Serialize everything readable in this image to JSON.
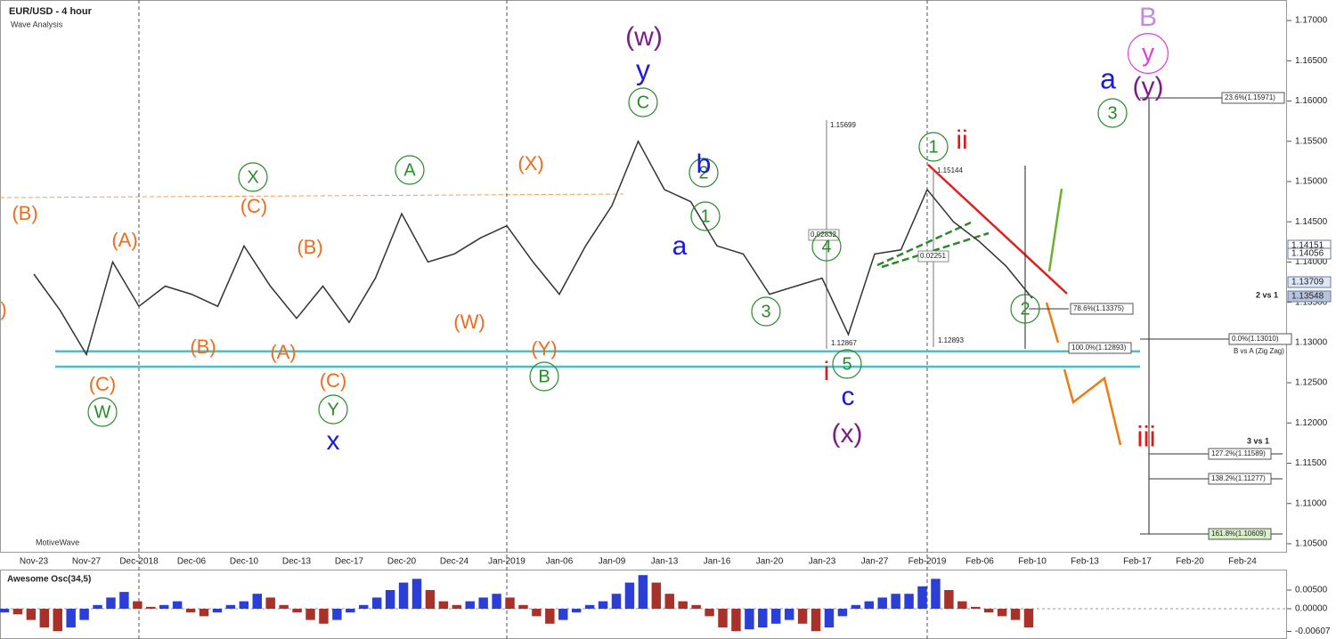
{
  "header": {
    "title": "EUR/USD - 4 hour",
    "subtitle": "Wave Analysis",
    "brand": "MotiveWave"
  },
  "chart_data": [
    {
      "type": "line",
      "color": "#333333",
      "categories": [
        "Nov-23",
        null,
        "Nov-27",
        null,
        "Dec-2018",
        null,
        "Dec-06",
        null,
        "Dec-10",
        null,
        "Dec-13",
        null,
        "Dec-17",
        null,
        "Dec-20",
        null,
        "Dec-24",
        null,
        "Jan-2019",
        null,
        "Jan-06",
        null,
        "Jan-09",
        null,
        "Jan-13",
        null,
        "Jan-16",
        null,
        "Jan-20",
        null,
        "Jan-23",
        null,
        "Jan-27",
        null,
        "Feb-2019",
        null,
        "Feb-06",
        null,
        "Feb-10",
        null,
        "Feb-13",
        null,
        "Feb-17",
        null,
        "Feb-20",
        null,
        "Feb-24",
        null
      ],
      "values": [
        1.1385,
        1.134,
        1.1285,
        1.14,
        1.1345,
        1.137,
        1.136,
        1.1345,
        1.142,
        1.137,
        1.133,
        1.137,
        1.1325,
        1.138,
        1.146,
        1.14,
        1.141,
        1.143,
        1.1445,
        1.14,
        1.136,
        1.142,
        1.147,
        1.155,
        1.149,
        1.1475,
        1.142,
        1.141,
        1.136,
        1.137,
        1.138,
        1.131,
        1.141,
        1.1415,
        1.149,
        1.145,
        1.1425,
        1.1395,
        1.1355,
        null,
        null,
        null,
        null,
        null,
        null,
        null,
        null,
        null
      ],
      "ylim": [
        1.104,
        1.172
      ],
      "yticks": [
        {
          "value": 1.105,
          "label": "1.10500"
        },
        {
          "value": 1.11,
          "label": "1.11000"
        },
        {
          "value": 1.115,
          "label": "1.11500"
        },
        {
          "value": 1.12,
          "label": "1.12000"
        },
        {
          "value": 1.125,
          "label": "1.12500"
        },
        {
          "value": 1.13,
          "label": "1.13000"
        },
        {
          "value": 1.135,
          "label": "1.13500"
        },
        {
          "value": 1.14,
          "label": "1.14000"
        },
        {
          "value": 1.145,
          "label": "1.14500"
        },
        {
          "value": 1.15,
          "label": "1.15000"
        },
        {
          "value": 1.155,
          "label": "1.15500"
        },
        {
          "value": 1.16,
          "label": "1.16000"
        },
        {
          "value": 1.165,
          "label": "1.16500"
        },
        {
          "value": 1.17,
          "label": "1.17000"
        }
      ],
      "support_lines": [
        1.1289,
        1.127
      ],
      "support_color": "#3cc8c8",
      "price_badges": [
        "1.14151",
        "1.14056",
        "1.13709",
        "1.13548"
      ],
      "fib_labels": [
        "23.6%(1.15971)",
        "0.0%(1.13010)",
        "127.2%(1.11589)",
        "138.2%(1.11277)",
        "161.8%(1.10609)",
        "78.6%(1.13375)",
        "100.0%(1.12893)"
      ],
      "notes": [
        "2 vs 1",
        "B vs A (Zig Zag)",
        "3 vs 1",
        "1.15699",
        "0.02832",
        "0.02251",
        "1.12867",
        "1.12893",
        "1.15144"
      ],
      "annotations": [
        {
          "text": "(B)",
          "color": "#f26b1d"
        },
        {
          "text": "(A)",
          "color": "#f26b1d"
        },
        {
          "text": "(C)",
          "color": "#f26b1d"
        },
        {
          "text": "(B)",
          "color": "#f26b1d"
        },
        {
          "text": "(X)",
          "color": "#f26b1d"
        },
        {
          "text": "(B)",
          "color": "#f26b1d"
        },
        {
          "text": "(A)",
          "color": "#f26b1d"
        },
        {
          "text": "(W)",
          "color": "#f26b1d"
        },
        {
          "text": "(C)",
          "color": "#f26b1d"
        },
        {
          "text": "(C)",
          "color": "#f26b1d"
        },
        {
          "text": "(Y)",
          "color": "#f26b1d"
        },
        {
          "text": ")",
          "color": "#f26b1d"
        },
        {
          "text": "W",
          "color": "#2a8a2a"
        },
        {
          "text": "X",
          "color": "#2a8a2a"
        },
        {
          "text": "A",
          "color": "#2a8a2a"
        },
        {
          "text": "Y",
          "color": "#2a8a2a"
        },
        {
          "text": "B",
          "color": "#2a8a2a"
        },
        {
          "text": "C",
          "color": "#2a8a2a"
        },
        {
          "text": "2",
          "color": "#2a8a2a"
        },
        {
          "text": "1",
          "color": "#2a8a2a"
        },
        {
          "text": "3",
          "color": "#2a8a2a"
        },
        {
          "text": "4",
          "color": "#2a8a2a"
        },
        {
          "text": "5",
          "color": "#2a8a2a"
        },
        {
          "text": "1",
          "color": "#2a8a2a"
        },
        {
          "text": "2",
          "color": "#2a8a2a"
        },
        {
          "text": "3",
          "color": "#2a8a2a"
        },
        {
          "text": "y",
          "color": "#1a1adf"
        },
        {
          "text": "b",
          "color": "#1a1adf"
        },
        {
          "text": "a",
          "color": "#1a1adf"
        },
        {
          "text": "x",
          "color": "#1a1adf"
        },
        {
          "text": "c",
          "color": "#1a1adf"
        },
        {
          "text": "a",
          "color": "#1a1adf"
        },
        {
          "text": "(w)",
          "color": "#7a1f86"
        },
        {
          "text": "(x)",
          "color": "#7a1f86"
        },
        {
          "text": "(y)",
          "color": "#7a1f86"
        },
        {
          "text": "i",
          "color": "#e01818"
        },
        {
          "text": "ii",
          "color": "#e01818"
        },
        {
          "text": "iii",
          "color": "#e01818"
        },
        {
          "text": "B",
          "color": "#c58be0"
        },
        {
          "text": "y",
          "color": "#e040e0"
        }
      ]
    },
    {
      "type": "bar",
      "title": "Awesome Osc(34,5)",
      "up_color": "#2b3fd6",
      "down_color": "#a8322a",
      "values": [
        -0.001,
        -0.0015,
        -0.003,
        -0.005,
        -0.006,
        -0.005,
        -0.003,
        0.001,
        0.003,
        0.0045,
        0.002,
        0.0005,
        0.001,
        0.002,
        -0.001,
        -0.002,
        -0.001,
        0.001,
        0.002,
        0.004,
        0.003,
        0.001,
        -0.001,
        -0.003,
        -0.004,
        -0.003,
        -0.001,
        0.001,
        0.003,
        0.005,
        0.007,
        0.008,
        0.005,
        0.002,
        0.001,
        0.002,
        0.003,
        0.004,
        0.003,
        0.001,
        -0.002,
        -0.004,
        -0.003,
        -0.001,
        0.001,
        0.002,
        0.004,
        0.007,
        0.009,
        0.007,
        0.004,
        0.002,
        0.001,
        -0.002,
        -0.005,
        -0.006,
        -0.0055,
        -0.005,
        -0.004,
        -0.003,
        -0.004,
        -0.006,
        -0.005,
        -0.002,
        0.001,
        0.002,
        0.003,
        0.004,
        0.004,
        0.006,
        0.008,
        0.005,
        0.002,
        0.0005,
        -0.001,
        -0.002,
        -0.003,
        -0.005
      ],
      "ylim": [
        -0.0068,
        0.0095
      ],
      "yticks": [
        {
          "value": 0.005,
          "label": "0.00500"
        },
        {
          "value": 0,
          "label": "0.00000"
        },
        {
          "value": -0.00607,
          "label": "-0.00607"
        }
      ]
    }
  ]
}
